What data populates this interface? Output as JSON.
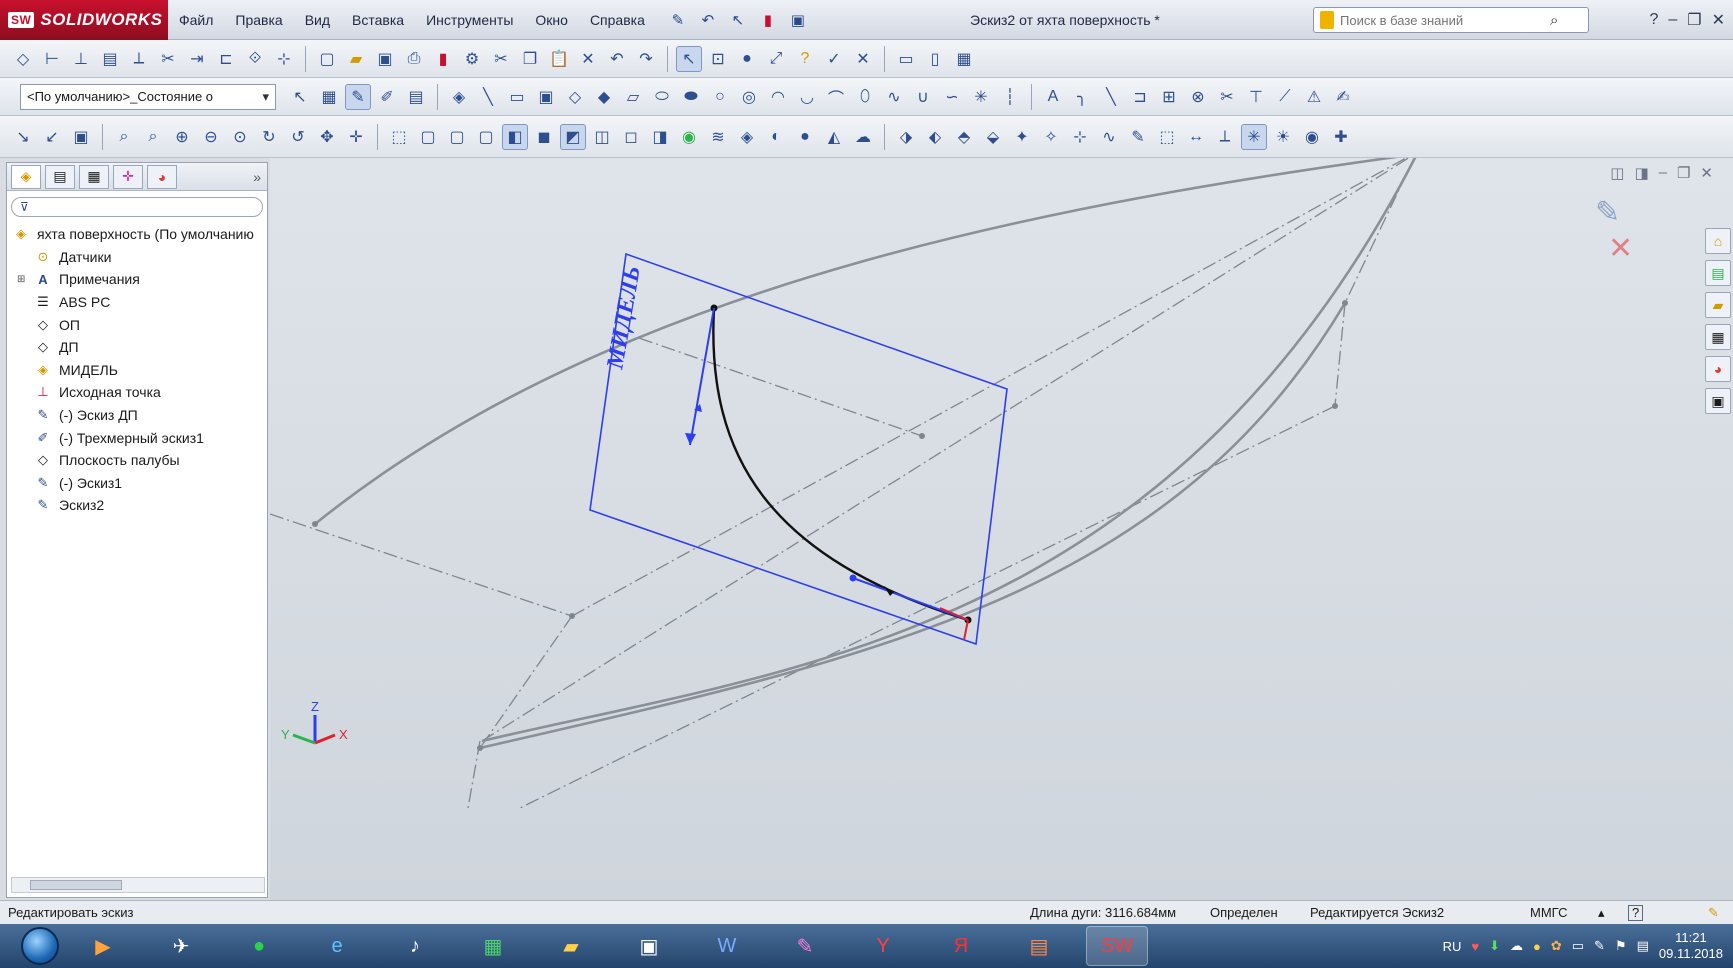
{
  "titlebar": {
    "app_name": "SOLIDWORKS",
    "menu": [
      "Файл",
      "Правка",
      "Вид",
      "Вставка",
      "Инструменты",
      "Окно",
      "Справка"
    ],
    "window_title": "Эскиз2 от яхта поверхность *",
    "search_placeholder": "Поиск в базе знаний"
  },
  "toolbar": {
    "configuration": "<По умолчанию>_Состояние о"
  },
  "feature_tree": {
    "root": "яхта поверхность  (По умолчанию",
    "items": [
      {
        "label": "Датчики",
        "icon": "sensor-icon"
      },
      {
        "label": "Примечания",
        "icon": "annotations-icon",
        "expandable": true
      },
      {
        "label": "ABS PC",
        "icon": "material-icon"
      },
      {
        "label": "ОП",
        "icon": "plane-icon"
      },
      {
        "label": "ДП",
        "icon": "plane-icon"
      },
      {
        "label": "МИДЕЛЬ",
        "icon": "plane-icon"
      },
      {
        "label": "Исходная точка",
        "icon": "origin-icon"
      },
      {
        "label": "(-) Эскиз ДП",
        "icon": "sketch-icon"
      },
      {
        "label": "(-) Трехмерный эскиз1",
        "icon": "3d-sketch-icon"
      },
      {
        "label": "Плоскость палубы",
        "icon": "plane-icon"
      },
      {
        "label": "(-) Эскиз1",
        "icon": "sketch-icon"
      },
      {
        "label": "Эскиз2",
        "icon": "sketch-icon"
      }
    ]
  },
  "viewport": {
    "plane_label": "МИДЕЛЬ",
    "triad": {
      "x": "X",
      "y": "Y",
      "z": "Z"
    }
  },
  "statusbar": {
    "left": "Редактировать эскиз",
    "arc_length": "Длина дуги: 3116.684мм",
    "state": "Определен",
    "editing": "Редактируется Эскиз2",
    "units": "ММГС"
  },
  "taskbar": {
    "lang": "RU",
    "time": "11:21",
    "date": "09.11.2018"
  }
}
